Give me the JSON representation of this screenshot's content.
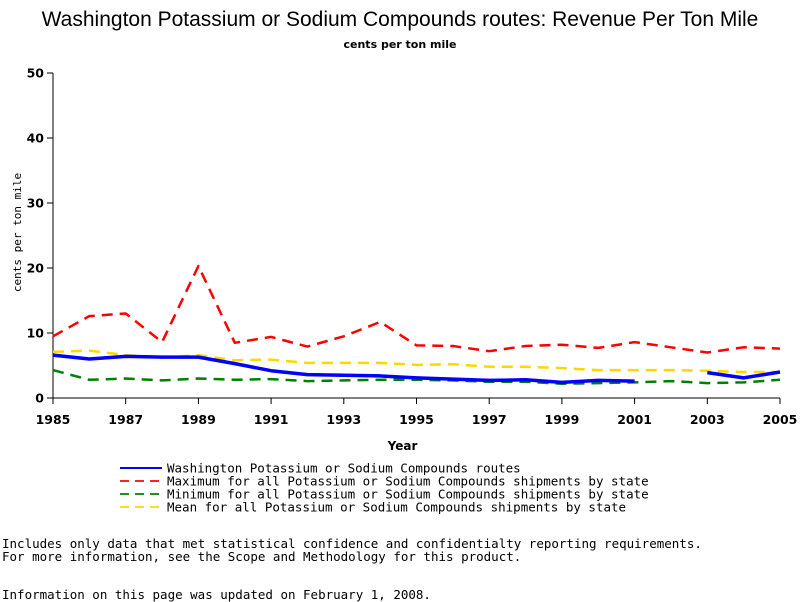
{
  "chart_data": {
    "type": "line",
    "title": "Washington Potassium or Sodium Compounds routes: Revenue Per Ton Mile",
    "subtitle": "cents per ton mile",
    "xlabel": "Year",
    "ylabel": "cents per ton mile",
    "xlim": [
      1985,
      2005
    ],
    "ylim": [
      0,
      50
    ],
    "x_ticks": [
      1985,
      1987,
      1989,
      1991,
      1993,
      1995,
      1997,
      1999,
      2001,
      2003,
      2005
    ],
    "y_ticks": [
      0,
      10,
      20,
      30,
      40,
      50
    ],
    "x": [
      1985,
      1986,
      1987,
      1988,
      1989,
      1990,
      1991,
      1992,
      1993,
      1994,
      1995,
      1996,
      1997,
      1998,
      1999,
      2000,
      2001,
      2002,
      2003,
      2004,
      2005
    ],
    "legend_position": "bottom",
    "series": [
      {
        "name": "Washington Potassium or Sodium Compounds routes",
        "color": "#0000ff",
        "style": "solid",
        "values": [
          6.6,
          6.0,
          6.4,
          6.3,
          6.3,
          5.3,
          4.2,
          3.6,
          3.5,
          3.4,
          3.1,
          2.9,
          2.7,
          2.8,
          2.4,
          2.7,
          2.6,
          null,
          3.9,
          3.1,
          4.0
        ]
      },
      {
        "name": "Maximum for all Potassium or Sodium Compounds shipments by state",
        "color": "#ff0000",
        "style": "dashed",
        "values": [
          9.5,
          12.6,
          13.0,
          8.6,
          20.3,
          8.5,
          9.4,
          7.9,
          9.5,
          11.7,
          8.1,
          8.0,
          7.2,
          8.0,
          8.2,
          7.7,
          8.6,
          7.8,
          7.0,
          7.8,
          7.6
        ]
      },
      {
        "name": "Minimum for all Potassium or Sodium Compounds shipments by state",
        "color": "#008000",
        "style": "dashed",
        "values": [
          4.3,
          2.8,
          3.0,
          2.7,
          3.0,
          2.8,
          2.9,
          2.6,
          2.7,
          2.8,
          2.8,
          2.7,
          2.5,
          2.5,
          2.2,
          2.3,
          2.4,
          2.6,
          2.3,
          2.4,
          2.8
        ]
      },
      {
        "name": "Mean for all Potassium or Sodium Compounds shipments by state",
        "color": "#ffd700",
        "style": "dashed",
        "values": [
          7.1,
          7.3,
          6.6,
          6.2,
          6.6,
          5.8,
          5.9,
          5.4,
          5.4,
          5.4,
          5.1,
          5.2,
          4.8,
          4.8,
          4.6,
          4.3,
          4.3,
          4.3,
          4.2,
          4.0,
          4.0
        ]
      }
    ]
  },
  "notes": [
    "Includes only data that met statistical confidence and confidentialty reporting requirements.",
    "For more information, see the Scope and Methodology for this product.",
    "Information on this page was updated on February 1, 2008."
  ]
}
